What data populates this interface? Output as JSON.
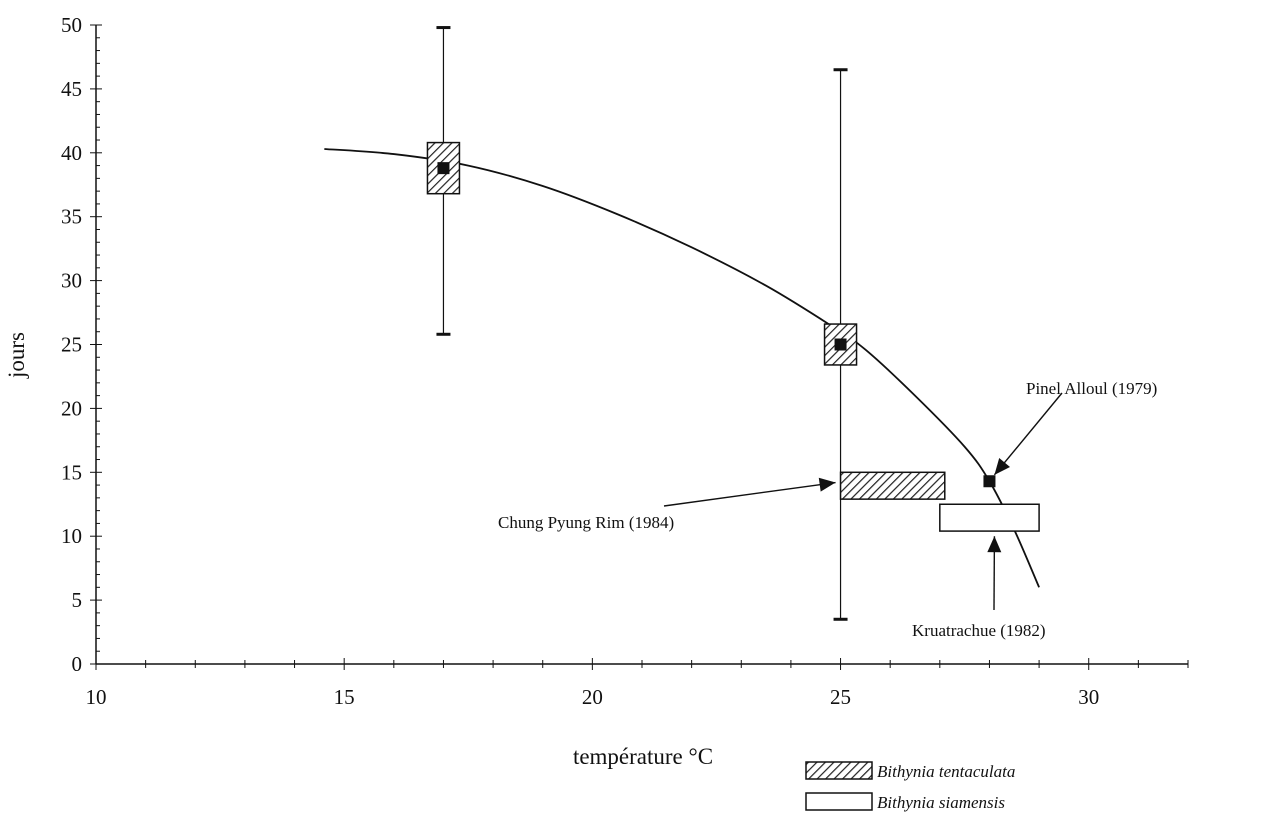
{
  "chart_data": {
    "type": "scatter",
    "title": "",
    "xlabel": "température °C",
    "ylabel": "jours",
    "xlim": [
      10,
      32
    ],
    "ylim": [
      0,
      50
    ],
    "x_ticks": [
      10,
      15,
      20,
      25,
      30
    ],
    "y_ticks": [
      0,
      5,
      10,
      15,
      20,
      25,
      30,
      35,
      40,
      45,
      50
    ],
    "grid": false,
    "points": [
      {
        "x": 17,
        "y": 38.8,
        "err_low": 25.8,
        "err_high": 49.8,
        "box_low": 36.8,
        "box_high": 40.8,
        "box": "tentaculata"
      },
      {
        "x": 25,
        "y": 25.0,
        "err_low": 3.5,
        "err_high": 46.5,
        "box_low": 23.4,
        "box_high": 26.6,
        "box": "tentaculata"
      },
      {
        "x": 28,
        "y": 14.3
      }
    ],
    "curve": [
      {
        "x": 14.6,
        "y": 40.3
      },
      {
        "x": 16,
        "y": 39.9
      },
      {
        "x": 17.5,
        "y": 39.0
      },
      {
        "x": 19,
        "y": 37.4
      },
      {
        "x": 20.5,
        "y": 35.2
      },
      {
        "x": 22,
        "y": 32.6
      },
      {
        "x": 23.5,
        "y": 29.6
      },
      {
        "x": 24.8,
        "y": 26.5
      },
      {
        "x": 25.5,
        "y": 24.6
      },
      {
        "x": 26.5,
        "y": 21.0
      },
      {
        "x": 27.5,
        "y": 17.0
      },
      {
        "x": 28.0,
        "y": 14.3
      },
      {
        "x": 28.5,
        "y": 10.5
      },
      {
        "x": 29.0,
        "y": 6.0
      }
    ],
    "ranges": [
      {
        "x_start": 25,
        "x_end": 27.1,
        "y_low": 12.9,
        "y_high": 15.0,
        "species": "tentaculata"
      },
      {
        "x_start": 27.0,
        "x_end": 29.0,
        "y_low": 10.4,
        "y_high": 12.5,
        "species": "siamensis"
      }
    ],
    "annotations": [
      {
        "text": "Pinel Alloul (1979)",
        "points_to": {
          "x": 28.1,
          "y": 14.8
        }
      },
      {
        "text": "Chung Pyung Rim (1984)",
        "points_to": {
          "x": 24.9,
          "y": 14.2
        }
      },
      {
        "text": "Kruatrachue (1982)",
        "points_to": {
          "x": 28.1,
          "y": 10.0
        }
      }
    ],
    "legend": {
      "position": "bottom-right",
      "entries": [
        {
          "label": "Bithynia tentaculata",
          "style": "hatched"
        },
        {
          "label": "Bithynia siamensis",
          "style": "white"
        }
      ]
    }
  }
}
